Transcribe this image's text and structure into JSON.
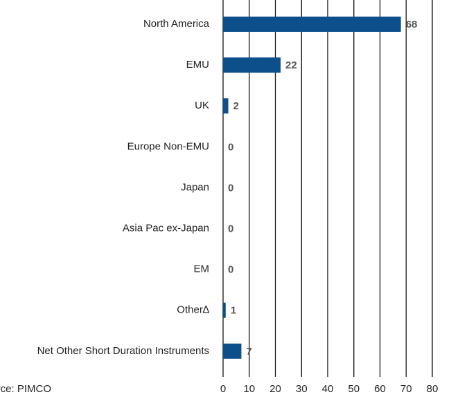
{
  "chart_data": {
    "type": "bar",
    "orientation": "horizontal",
    "categories": [
      "North America",
      "EMU",
      "UK",
      "Europe Non-EMU",
      "Japan",
      "Asia Pac ex-Japan",
      "EM",
      "Other∆",
      "Net Other Short Duration Instruments"
    ],
    "values": [
      68,
      22,
      2,
      0,
      0,
      0,
      0,
      1,
      7
    ],
    "color": "#0d4f8b",
    "xlim": [
      0,
      80
    ],
    "xticks": [
      0,
      10,
      20,
      30,
      40,
      50,
      60,
      70,
      80
    ],
    "grid": true,
    "source": "Source: PIMCO"
  }
}
